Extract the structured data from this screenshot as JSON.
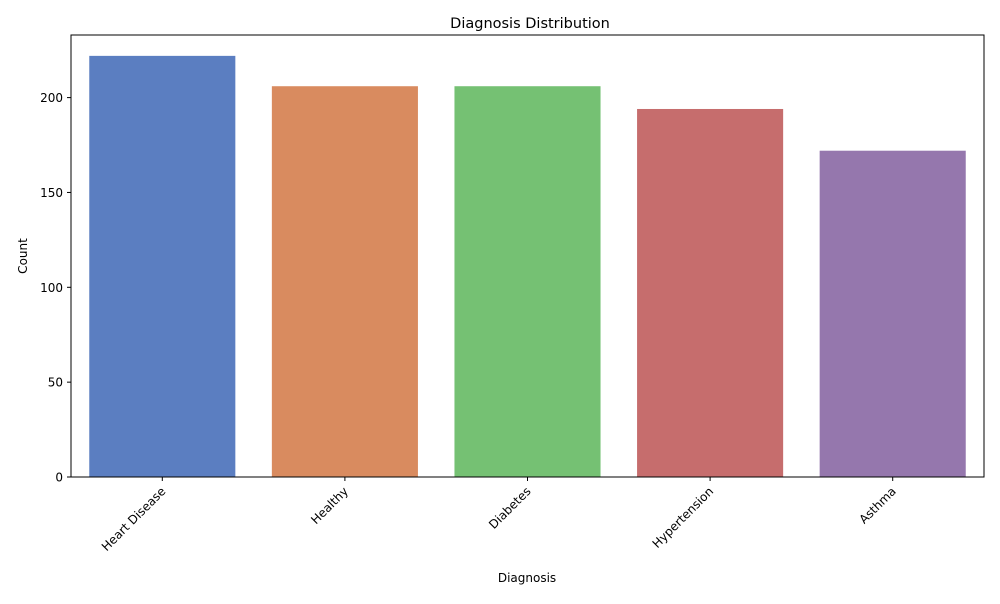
{
  "chart_data": {
    "type": "bar",
    "title": "Diagnosis Distribution",
    "xlabel": "Diagnosis",
    "ylabel": "Count",
    "categories": [
      "Heart Disease",
      "Healthy",
      "Diabetes",
      "Hypertension",
      "Asthma"
    ],
    "values": [
      222,
      206,
      206,
      194,
      172
    ],
    "ylim": [
      0,
      233
    ],
    "yticks": [
      0,
      50,
      100,
      150,
      200
    ],
    "grid": false,
    "legend": "none",
    "colors": [
      "#5b7ec1",
      "#d98b5f",
      "#75c173",
      "#c66d6d",
      "#9577ad"
    ]
  }
}
